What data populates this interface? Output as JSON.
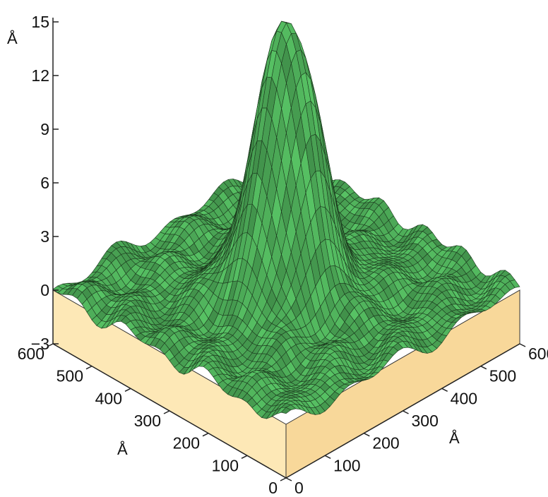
{
  "chart_data": {
    "type": "surface3d",
    "title": "",
    "z_axis": {
      "label": "Å",
      "ticks": [
        "15",
        "12",
        "9",
        "6",
        "3",
        "0",
        "−3"
      ],
      "range": [
        -3,
        15
      ]
    },
    "x_axis": {
      "label": "Å",
      "ticks": [
        "0",
        "100",
        "200",
        "300",
        "400",
        "500",
        "600"
      ],
      "range": [
        0,
        600
      ]
    },
    "y_axis": {
      "label": "Å",
      "ticks": [
        "0",
        "100",
        "200",
        "300",
        "400",
        "500",
        "600"
      ],
      "range": [
        0,
        600
      ]
    },
    "surface": {
      "base_level": 0,
      "roughness_amplitude": 0.6,
      "peak": {
        "x": 300,
        "y": 300,
        "height": 15.3,
        "width": 60
      }
    },
    "colors": {
      "surface_fill": "#4ca957",
      "surface_stroke": "#1c3a1e",
      "base_left": "#fde8b6",
      "base_right": "#f8d89a",
      "axis": "#222222"
    }
  }
}
